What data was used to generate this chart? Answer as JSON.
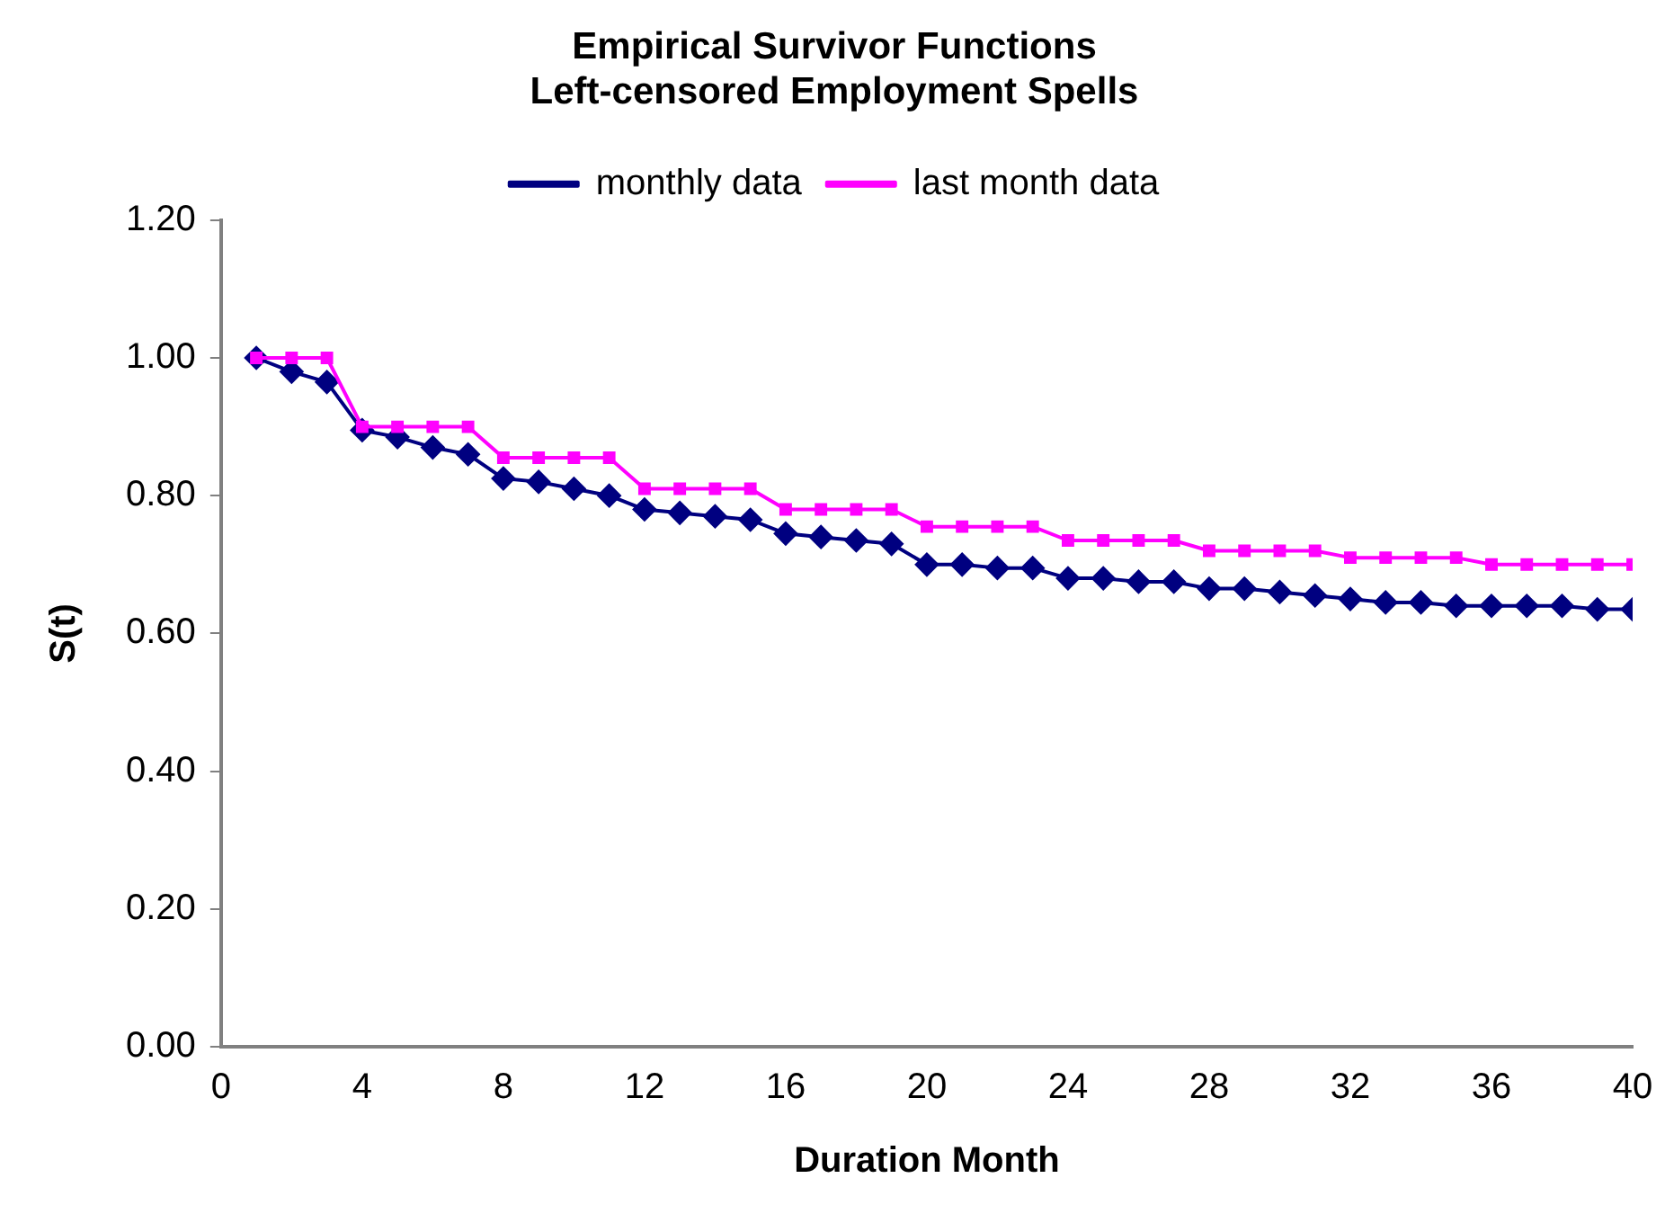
{
  "chart_data": {
    "type": "line",
    "title": [
      "Empirical Survivor Functions",
      "Left-censored Employment Spells"
    ],
    "xlabel": "Duration Month",
    "ylabel": "S(t)",
    "x": [
      1,
      2,
      3,
      4,
      5,
      6,
      7,
      8,
      9,
      10,
      11,
      12,
      13,
      14,
      15,
      16,
      17,
      18,
      19,
      20,
      21,
      22,
      23,
      24,
      25,
      26,
      27,
      28,
      29,
      30,
      31,
      32,
      33,
      34,
      35,
      36,
      37,
      38,
      39,
      40
    ],
    "series": [
      {
        "name": "monthly data",
        "color": "#000080",
        "marker": "diamond",
        "values": [
          1.0,
          0.98,
          0.965,
          0.895,
          0.885,
          0.87,
          0.86,
          0.825,
          0.82,
          0.81,
          0.8,
          0.78,
          0.775,
          0.77,
          0.765,
          0.745,
          0.74,
          0.735,
          0.73,
          0.7,
          0.7,
          0.695,
          0.695,
          0.68,
          0.68,
          0.675,
          0.675,
          0.665,
          0.665,
          0.66,
          0.655,
          0.65,
          0.645,
          0.645,
          0.64,
          0.64,
          0.64,
          0.64,
          0.635,
          0.635
        ]
      },
      {
        "name": "last month data",
        "color": "#ff00ff",
        "marker": "square",
        "values": [
          1.0,
          1.0,
          1.0,
          0.9,
          0.9,
          0.9,
          0.9,
          0.855,
          0.855,
          0.855,
          0.855,
          0.81,
          0.81,
          0.81,
          0.81,
          0.78,
          0.78,
          0.78,
          0.78,
          0.755,
          0.755,
          0.755,
          0.755,
          0.735,
          0.735,
          0.735,
          0.735,
          0.72,
          0.72,
          0.72,
          0.72,
          0.71,
          0.71,
          0.71,
          0.71,
          0.7,
          0.7,
          0.7,
          0.7,
          0.7
        ]
      }
    ],
    "xlim": [
      0,
      40
    ],
    "xticks": [
      0,
      4,
      8,
      12,
      16,
      20,
      24,
      28,
      32,
      36,
      40
    ],
    "ylim": [
      0,
      1.2
    ],
    "yticks": [
      {
        "value": 0,
        "label": "0.00"
      },
      {
        "value": 0.2,
        "label": "0.20"
      },
      {
        "value": 0.4,
        "label": "0.40"
      },
      {
        "value": 0.6,
        "label": "0.60"
      },
      {
        "value": 0.8,
        "label": "0.80"
      },
      {
        "value": 1,
        "label": "1.00"
      },
      {
        "value": 1.2,
        "label": "1.20"
      }
    ],
    "grid": false,
    "legend": "top"
  }
}
